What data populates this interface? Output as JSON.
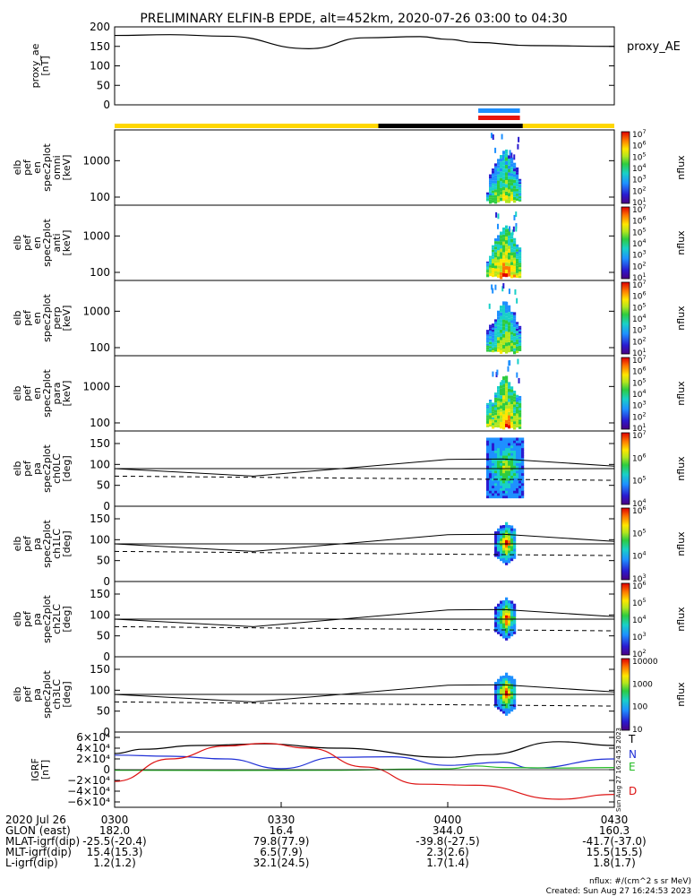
{
  "title": "PRELIMINARY ELFIN-B EPDE, alt=452km, 2020-07-26 03:00 to 04:30",
  "colors": {
    "sunlight_bar": "#ffd700",
    "shadow_bar": "#000000",
    "science_bar_1": "#1e90ff",
    "science_bar_2": "#e8150f",
    "grf_T": "#000000",
    "grf_N": "#1f2fd6",
    "grf_E": "#22bb22",
    "grf_D": "#dd1111"
  },
  "chart_data": [
    {
      "type": "line",
      "ylabel": "proxy_ae\n[nT]",
      "legend": "proxy_AE",
      "ylim": [
        0,
        200
      ],
      "yticks": [
        "0",
        "50",
        "100",
        "150",
        "200"
      ],
      "series": [
        {
          "name": "proxy_AE",
          "x_min": [
            0,
            10,
            20,
            35,
            45,
            55,
            60,
            65,
            75,
            90
          ],
          "y": [
            178,
            180,
            176,
            144,
            172,
            175,
            168,
            160,
            152,
            150
          ]
        }
      ]
    },
    {
      "type": "heatmap",
      "ylabel": "elb\npef\nen\nspec2plot\nomni\n[keV]",
      "yscale": "log",
      "ylim": [
        60,
        7000
      ],
      "yticks": [
        "100",
        "1000"
      ],
      "colorbar": {
        "label": "nflux",
        "ticks": [
          "10^1",
          "10^2",
          "10^3",
          "10^4",
          "10^5",
          "10^6",
          "10^7"
        ]
      }
    },
    {
      "type": "heatmap",
      "ylabel": "elb\npef\nen\nspec2plot\nanti\n[keV]",
      "yscale": "log",
      "ylim": [
        60,
        7000
      ],
      "yticks": [
        "100",
        "1000"
      ],
      "colorbar": {
        "label": "nflux",
        "ticks": [
          "10^1",
          "10^2",
          "10^3",
          "10^4",
          "10^5",
          "10^6",
          "10^7"
        ]
      }
    },
    {
      "type": "heatmap",
      "ylabel": "elb\npef\nen\nspec2plot\nperp\n[keV]",
      "yscale": "log",
      "ylim": [
        60,
        7000
      ],
      "yticks": [
        "100",
        "1000"
      ],
      "colorbar": {
        "label": "nflux",
        "ticks": [
          "10^1",
          "10^2",
          "10^3",
          "10^4",
          "10^5",
          "10^6",
          "10^7"
        ]
      }
    },
    {
      "type": "heatmap",
      "ylabel": "elb\npef\nen\nspec2plot\npara\n[keV]",
      "yscale": "log",
      "ylim": [
        60,
        7000
      ],
      "yticks": [
        "100",
        "1000"
      ],
      "colorbar": {
        "label": "nflux",
        "ticks": [
          "10^1",
          "10^2",
          "10^3",
          "10^4",
          "10^5",
          "10^6",
          "10^7"
        ]
      }
    },
    {
      "type": "heatmap",
      "ylabel": "elb\npef\npa\nspec2plot\nch0LC\n[deg]",
      "ylim": [
        0,
        180
      ],
      "yticks": [
        "0",
        "50",
        "100",
        "150"
      ],
      "colorbar": {
        "label": "nflux",
        "ticks": [
          "10^4",
          "10^5",
          "10^6",
          "10^7"
        ]
      }
    },
    {
      "type": "heatmap",
      "ylabel": "elb\npef\npa\nspec2plot\nch1LC\n[deg]",
      "ylim": [
        0,
        180
      ],
      "yticks": [
        "0",
        "50",
        "100",
        "150"
      ],
      "colorbar": {
        "label": "nflux",
        "ticks": [
          "10^3",
          "10^4",
          "10^5",
          "10^6"
        ]
      }
    },
    {
      "type": "heatmap",
      "ylabel": "elb\npef\npa\nspec2plot\nch2LC\n[deg]",
      "ylim": [
        0,
        180
      ],
      "yticks": [
        "0",
        "50",
        "100",
        "150"
      ],
      "colorbar": {
        "label": "nflux",
        "ticks": [
          "10^2",
          "10^3",
          "10^4",
          "10^5",
          "10^6"
        ]
      }
    },
    {
      "type": "heatmap",
      "ylabel": "elb\npef\npa\nspec2plot\nch3LC\n[deg]",
      "ylim": [
        0,
        180
      ],
      "yticks": [
        "0",
        "50",
        "100",
        "150"
      ],
      "colorbar": {
        "label": "nflux",
        "ticks": [
          "10",
          "100",
          "1000",
          "10000"
        ]
      }
    },
    {
      "type": "line",
      "ylabel": "IGRF\n[nT]",
      "ylim": [
        -70000,
        70000
      ],
      "yticks": [
        "6×10⁴",
        "4×10⁴",
        "2×10⁴",
        "0",
        "−2×10⁴",
        "−4×10⁴",
        "−6×10⁴"
      ],
      "legend": [
        "T",
        "N",
        "E",
        "D"
      ],
      "side_label": "Sun Aug 27 16:24:53 2023",
      "series": [
        {
          "name": "T",
          "x_min": [
            0,
            5,
            15,
            27,
            40,
            60,
            67,
            80,
            90
          ],
          "y": [
            30000,
            38000,
            45000,
            48000,
            40000,
            23000,
            28000,
            52000,
            45000
          ]
        },
        {
          "name": "N",
          "x_min": [
            0,
            10,
            20,
            30,
            40,
            50,
            60,
            70,
            75,
            90
          ],
          "y": [
            27000,
            25000,
            20000,
            2000,
            23000,
            24000,
            8000,
            14000,
            3000,
            20000
          ]
        },
        {
          "name": "E",
          "x_min": [
            0,
            20,
            40,
            55,
            60,
            65,
            70,
            80,
            90
          ],
          "y": [
            -1000,
            -1500,
            -1000,
            1000,
            1500,
            7000,
            4000,
            3000,
            4000
          ]
        },
        {
          "name": "D",
          "x_min": [
            0,
            10,
            20,
            27,
            35,
            45,
            55,
            65,
            80,
            90
          ],
          "y": [
            -22000,
            20000,
            44000,
            49000,
            40000,
            5000,
            -27000,
            -29000,
            -55000,
            -46000
          ]
        }
      ]
    }
  ],
  "x_axis": {
    "row_labels": [
      "2020 Jul 26",
      "GLON (east)",
      "MLAT-igrf(dip)",
      "MLT-igrf(dip)",
      "L-igrf(dip)"
    ],
    "columns": [
      {
        "x_min": 0,
        "values": [
          "0300",
          "182.0",
          "-25.5(-20.4)",
          "15.4(15.3)",
          "1.2(1.2)"
        ]
      },
      {
        "x_min": 30,
        "values": [
          "0330",
          "16.4",
          "79.8(77.9)",
          "6.5(7.9)",
          "32.1(24.5)"
        ]
      },
      {
        "x_min": 60,
        "values": [
          "0400",
          "344.0",
          "-39.8(-27.5)",
          "2.3(2.6)",
          "1.7(1.4)"
        ]
      },
      {
        "x_min": 90,
        "values": [
          "0430",
          "160.3",
          "-41.7(-37.0)",
          "15.5(15.5)",
          "1.8(1.7)"
        ]
      }
    ]
  },
  "footer": {
    "units": "nflux: #/(cm^2 s sr MeV)",
    "created": "Created: Sun Aug 27 16:24:53 2023"
  }
}
